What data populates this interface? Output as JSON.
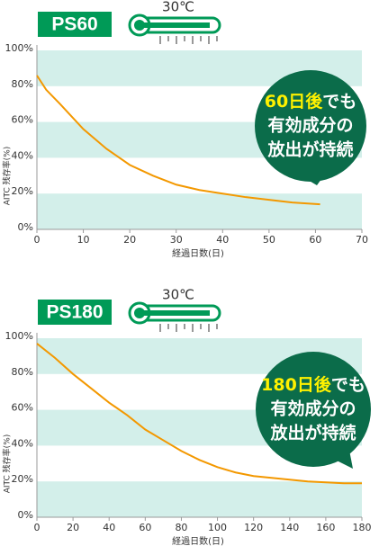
{
  "chart_data": [
    {
      "type": "line",
      "label": "PS60",
      "temperature": "30℃",
      "y_label": "AITC 残存率(%)",
      "x_label": "経過日数(日)",
      "x": [
        0,
        2,
        5,
        10,
        15,
        20,
        25,
        30,
        35,
        40,
        45,
        50,
        55,
        61
      ],
      "series": [
        {
          "color": "#f39800",
          "values": [
            86,
            78,
            70,
            56,
            45,
            36,
            30,
            25,
            22,
            20,
            18,
            16.5,
            15,
            14
          ]
        }
      ],
      "xlim": [
        0,
        70
      ],
      "xticks": [
        0,
        10,
        20,
        30,
        40,
        50,
        60,
        70
      ],
      "ylim": [
        0,
        100
      ],
      "yticks": [
        {
          "value": 0,
          "label": "0%"
        },
        {
          "value": 20,
          "label": "20%"
        },
        {
          "value": 40,
          "label": "40%"
        },
        {
          "value": 60,
          "label": "60%"
        },
        {
          "value": 80,
          "label": "80%"
        },
        {
          "value": 100,
          "label": "100%"
        }
      ],
      "grid": true,
      "callout": {
        "highlight": "60日後",
        "lines": [
          "でも",
          "有効成分の",
          "放出が持続"
        ]
      }
    },
    {
      "type": "line",
      "label": "PS180",
      "temperature": "30℃",
      "y_label": "AITC 残存率(%)",
      "x_label": "経過日数(日)",
      "x": [
        0,
        10,
        20,
        30,
        40,
        50,
        60,
        70,
        80,
        90,
        100,
        110,
        120,
        130,
        140,
        150,
        160,
        170,
        180
      ],
      "series": [
        {
          "color": "#f39800",
          "values": [
            97,
            89,
            80,
            72,
            64,
            57,
            49,
            43,
            37,
            32,
            28,
            25,
            23,
            22,
            21,
            20,
            19.5,
            19,
            19
          ]
        }
      ],
      "xlim": [
        0,
        180
      ],
      "xticks": [
        0,
        20,
        40,
        60,
        80,
        100,
        120,
        140,
        160,
        180
      ],
      "ylim": [
        0,
        100
      ],
      "yticks": [
        {
          "value": 0,
          "label": "0%"
        },
        {
          "value": 20,
          "label": "20%"
        },
        {
          "value": 40,
          "label": "40%"
        },
        {
          "value": 60,
          "label": "60%"
        },
        {
          "value": 80,
          "label": "80%"
        },
        {
          "value": 100,
          "label": "100%"
        }
      ],
      "grid": true,
      "callout": {
        "highlight": "180日後",
        "lines": [
          "でも",
          "有効成分の",
          "放出が持続"
        ]
      }
    }
  ]
}
